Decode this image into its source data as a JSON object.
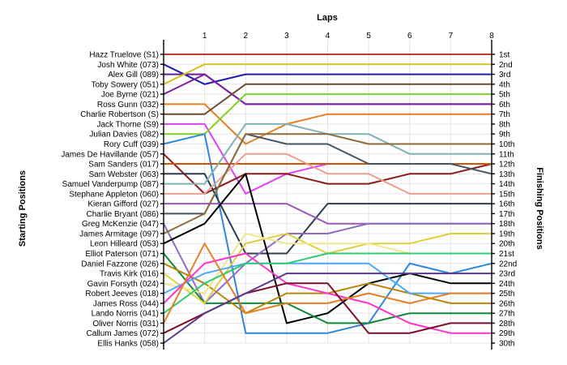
{
  "chart_data": {
    "type": "line",
    "title": "Laps",
    "xlabel": "Laps",
    "ylabel_left": "Starting Positions",
    "ylabel_right": "Finishing Positions",
    "x": [
      0,
      1,
      2,
      3,
      4,
      5,
      6,
      7,
      8
    ],
    "x_tick_labels": [
      "1",
      "2",
      "3",
      "4",
      "5",
      "6",
      "7",
      "8"
    ],
    "xlim": [
      0,
      8
    ],
    "ylim": [
      1,
      30
    ],
    "y_inverted": true,
    "grid": true,
    "starting_positions": [
      "Hazz Truelove (S1)",
      "Josh White (073)",
      "Alex Gill (089)",
      "Toby Sowery (051)",
      "Joe Byrne (021)",
      "Ross Gunn (032)",
      "Charlie Robertson (S)",
      "Jack Thorne (S9)",
      "Julian Davies (082)",
      "Rory Cuff (039)",
      "James De Havillande (057)",
      "Sam Sanders (017)",
      "Sam Webster (063)",
      "Samuel Vanderpump (087)",
      "Stephane Appleton (060)",
      "Kieran Gifford (027)",
      "Charlie Bryant (086)",
      "Greg McKenzie (047)",
      "James Armitage (097)",
      "Leon Hilleard (053)",
      "Elliot Paterson (071)",
      "Daniel Fazzone (026)",
      "Travis Kirk (016)",
      "Gavin Forsyth (024)",
      "Robert Jeeves (018)",
      "James Ross (044)",
      "Lando Norris (041)",
      "Oliver Norris (031)",
      "Callum James (072)",
      "Ellis Hanks (058)"
    ],
    "finishing_positions": [
      "1st",
      "2nd",
      "3rd",
      "4th",
      "5th",
      "6th",
      "7th",
      "8th",
      "9th",
      "10th",
      "11th",
      "12th",
      "13th",
      "14th",
      "15th",
      "16th",
      "17th",
      "18th",
      "19th",
      "20th",
      "21st",
      "22nd",
      "23rd",
      "24th",
      "25th",
      "26th",
      "27th",
      "28th",
      "29th",
      "30th"
    ],
    "series": [
      {
        "start": 1,
        "color": "#c0392b",
        "values": [
          1,
          1,
          1,
          1,
          1,
          1,
          1,
          1,
          1
        ]
      },
      {
        "start": 2,
        "color": "#1f1fa8",
        "values": [
          2,
          4,
          3,
          3,
          3,
          3,
          3,
          3,
          3
        ]
      },
      {
        "start": 3,
        "color": "#6a1b9a",
        "values": [
          3,
          3,
          6,
          6,
          6,
          6,
          6,
          6,
          6
        ]
      },
      {
        "start": 4,
        "color": "#d4c21a",
        "values": [
          4,
          2,
          2,
          2,
          2,
          2,
          2,
          2,
          2
        ]
      },
      {
        "start": 5,
        "color": "#7b1fa2",
        "values": [
          5,
          3,
          6,
          6,
          6,
          6,
          6,
          6,
          6
        ]
      },
      {
        "start": 6,
        "color": "#e67e22",
        "values": [
          6,
          6,
          10,
          8,
          7,
          7,
          7,
          7,
          7
        ]
      },
      {
        "start": 7,
        "color": "#6d4c2f",
        "values": [
          7,
          7,
          4,
          4,
          4,
          4,
          4,
          4,
          4
        ]
      },
      {
        "start": 8,
        "color": "#e040fb",
        "values": [
          8,
          8,
          15,
          13,
          12,
          12,
          12,
          12,
          12
        ]
      },
      {
        "start": 9,
        "color": "#7cd320",
        "values": [
          9,
          9,
          5,
          5,
          5,
          5,
          5,
          5,
          5
        ]
      },
      {
        "start": 10,
        "color": "#2e86de",
        "values": [
          10,
          9,
          29,
          29,
          29,
          28,
          22,
          23,
          22
        ]
      },
      {
        "start": 11,
        "color": "#8b1a1a",
        "values": [
          11,
          15,
          13,
          13,
          14,
          14,
          13,
          13,
          12
        ]
      },
      {
        "start": 12,
        "color": "#d35400",
        "values": [
          12,
          12,
          12,
          12,
          12,
          12,
          12,
          12,
          12
        ]
      },
      {
        "start": 13,
        "color": "#2c3e50",
        "values": [
          13,
          13,
          21,
          21,
          16,
          16,
          16,
          16,
          16
        ]
      },
      {
        "start": 14,
        "color": "#7fb3b3",
        "values": [
          14,
          14,
          8,
          8,
          9,
          9,
          11,
          11,
          11
        ]
      },
      {
        "start": 15,
        "color": "#e8a090",
        "values": [
          15,
          15,
          11,
          11,
          13,
          13,
          15,
          15,
          15
        ]
      },
      {
        "start": 16,
        "color": "#9b59b6",
        "values": [
          16,
          16,
          16,
          16,
          18,
          18,
          18,
          18,
          18
        ]
      },
      {
        "start": 17,
        "color": "#445566",
        "values": [
          17,
          17,
          9,
          10,
          10,
          12,
          12,
          12,
          13
        ]
      },
      {
        "start": 18,
        "color": "#8e6bbf",
        "values": [
          18,
          26,
          22,
          19,
          19,
          18,
          18,
          18,
          18
        ]
      },
      {
        "start": 19,
        "color": "#8a6d3b",
        "values": [
          19,
          17,
          9,
          9,
          9,
          10,
          10,
          10,
          10
        ]
      },
      {
        "start": 20,
        "color": "#000000",
        "values": [
          20,
          18,
          13,
          28,
          27,
          24,
          23,
          24,
          24
        ]
      },
      {
        "start": 21,
        "color": "#0b8a3a",
        "values": [
          21,
          26,
          26,
          26,
          28,
          28,
          27,
          27,
          27
        ]
      },
      {
        "start": 22,
        "color": "#b8860b",
        "values": [
          22,
          24,
          27,
          25,
          25,
          24,
          25,
          26,
          26
        ]
      },
      {
        "start": 23,
        "color": "#e0d040",
        "values": [
          23,
          26,
          20,
          19,
          21,
          20,
          20,
          19,
          19
        ]
      },
      {
        "start": 24,
        "color": "#f0e68c",
        "values": [
          24,
          25,
          19,
          20,
          20,
          20,
          21,
          21,
          21
        ]
      },
      {
        "start": 25,
        "color": "#4da6ff",
        "values": [
          25,
          23,
          22,
          22,
          22,
          22,
          25,
          25,
          25
        ]
      },
      {
        "start": 26,
        "color": "#ff33cc",
        "values": [
          26,
          22,
          21,
          24,
          25,
          26,
          28,
          29,
          29
        ]
      },
      {
        "start": 27,
        "color": "#2ecc71",
        "values": [
          27,
          24,
          22,
          22,
          21,
          21,
          21,
          21,
          21
        ]
      },
      {
        "start": 28,
        "color": "#e67e22",
        "values": [
          28,
          20,
          27,
          26,
          26,
          25,
          26,
          25,
          25
        ]
      },
      {
        "start": 29,
        "color": "#7a0f2e",
        "values": [
          29,
          27,
          25,
          24,
          24,
          29,
          29,
          28,
          28
        ]
      },
      {
        "start": 30,
        "color": "#5b3a8a",
        "values": [
          30,
          27,
          25,
          23,
          23,
          23,
          23,
          23,
          23
        ]
      }
    ]
  }
}
